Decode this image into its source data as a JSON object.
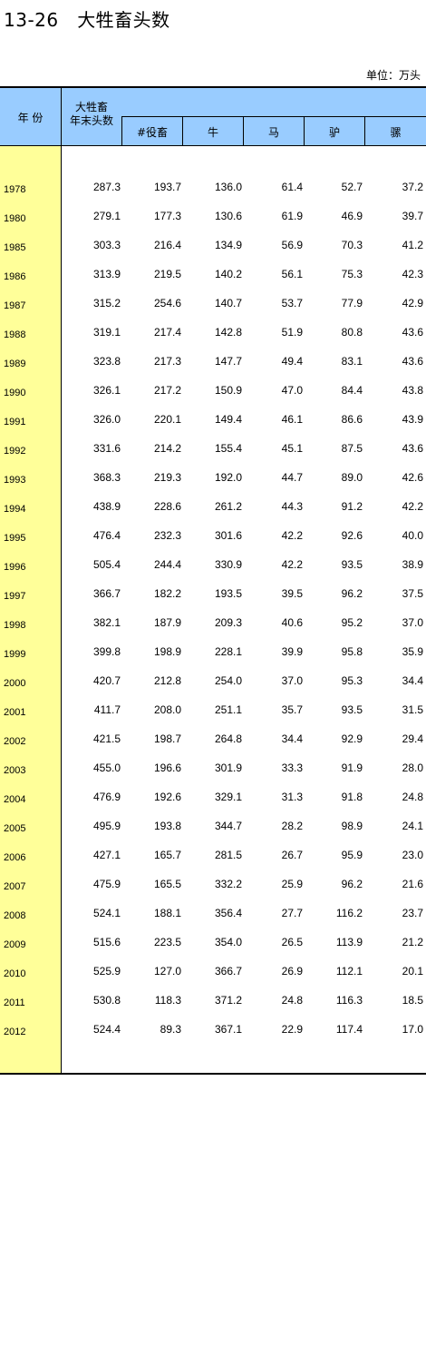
{
  "title": "13-26   大牲畜头数",
  "unit": "单位：万头",
  "headers": {
    "year": "年  份",
    "total": "大牲畜\n年末头数",
    "draft": "#役畜",
    "cattle": "牛",
    "horse": "马",
    "donkey": "驴",
    "mule": "骡"
  },
  "rows": [
    {
      "year": "1978",
      "total": "287.3",
      "draft": "193.7",
      "cattle": "136.0",
      "horse": "61.4",
      "donkey": "52.7",
      "mule": "37.2"
    },
    {
      "year": "1980",
      "total": "279.1",
      "draft": "177.3",
      "cattle": "130.6",
      "horse": "61.9",
      "donkey": "46.9",
      "mule": "39.7"
    },
    {
      "year": "1985",
      "total": "303.3",
      "draft": "216.4",
      "cattle": "134.9",
      "horse": "56.9",
      "donkey": "70.3",
      "mule": "41.2"
    },
    {
      "year": "1986",
      "total": "313.9",
      "draft": "219.5",
      "cattle": "140.2",
      "horse": "56.1",
      "donkey": "75.3",
      "mule": "42.3"
    },
    {
      "year": "1987",
      "total": "315.2",
      "draft": "254.6",
      "cattle": "140.7",
      "horse": "53.7",
      "donkey": "77.9",
      "mule": "42.9"
    },
    {
      "year": "1988",
      "total": "319.1",
      "draft": "217.4",
      "cattle": "142.8",
      "horse": "51.9",
      "donkey": "80.8",
      "mule": "43.6"
    },
    {
      "year": "1989",
      "total": "323.8",
      "draft": "217.3",
      "cattle": "147.7",
      "horse": "49.4",
      "donkey": "83.1",
      "mule": "43.6"
    },
    {
      "year": "1990",
      "total": "326.1",
      "draft": "217.2",
      "cattle": "150.9",
      "horse": "47.0",
      "donkey": "84.4",
      "mule": "43.8"
    },
    {
      "year": "1991",
      "total": "326.0",
      "draft": "220.1",
      "cattle": "149.4",
      "horse": "46.1",
      "donkey": "86.6",
      "mule": "43.9"
    },
    {
      "year": "1992",
      "total": "331.6",
      "draft": "214.2",
      "cattle": "155.4",
      "horse": "45.1",
      "donkey": "87.5",
      "mule": "43.6"
    },
    {
      "year": "1993",
      "total": "368.3",
      "draft": "219.3",
      "cattle": "192.0",
      "horse": "44.7",
      "donkey": "89.0",
      "mule": "42.6"
    },
    {
      "year": "1994",
      "total": "438.9",
      "draft": "228.6",
      "cattle": "261.2",
      "horse": "44.3",
      "donkey": "91.2",
      "mule": "42.2"
    },
    {
      "year": "1995",
      "total": "476.4",
      "draft": "232.3",
      "cattle": "301.6",
      "horse": "42.2",
      "donkey": "92.6",
      "mule": "40.0"
    },
    {
      "year": "1996",
      "total": "505.4",
      "draft": "244.4",
      "cattle": "330.9",
      "horse": "42.2",
      "donkey": "93.5",
      "mule": "38.9"
    },
    {
      "year": "1997",
      "total": "366.7",
      "draft": "182.2",
      "cattle": "193.5",
      "horse": "39.5",
      "donkey": "96.2",
      "mule": "37.5"
    },
    {
      "year": "1998",
      "total": "382.1",
      "draft": "187.9",
      "cattle": "209.3",
      "horse": "40.6",
      "donkey": "95.2",
      "mule": "37.0"
    },
    {
      "year": "1999",
      "total": "399.8",
      "draft": "198.9",
      "cattle": "228.1",
      "horse": "39.9",
      "donkey": "95.8",
      "mule": "35.9"
    },
    {
      "year": "2000",
      "total": "420.7",
      "draft": "212.8",
      "cattle": "254.0",
      "horse": "37.0",
      "donkey": "95.3",
      "mule": "34.4"
    },
    {
      "year": "2001",
      "total": "411.7",
      "draft": "208.0",
      "cattle": "251.1",
      "horse": "35.7",
      "donkey": "93.5",
      "mule": "31.5"
    },
    {
      "year": "2002",
      "total": "421.5",
      "draft": "198.7",
      "cattle": "264.8",
      "horse": "34.4",
      "donkey": "92.9",
      "mule": "29.4"
    },
    {
      "year": "2003",
      "total": "455.0",
      "draft": "196.6",
      "cattle": "301.9",
      "horse": "33.3",
      "donkey": "91.9",
      "mule": "28.0"
    },
    {
      "year": "2004",
      "total": "476.9",
      "draft": "192.6",
      "cattle": "329.1",
      "horse": "31.3",
      "donkey": "91.8",
      "mule": "24.8"
    },
    {
      "year": "2005",
      "total": "495.9",
      "draft": "193.8",
      "cattle": "344.7",
      "horse": "28.2",
      "donkey": "98.9",
      "mule": "24.1"
    },
    {
      "year": "2006",
      "total": "427.1",
      "draft": "165.7",
      "cattle": "281.5",
      "horse": "26.7",
      "donkey": "95.9",
      "mule": "23.0"
    },
    {
      "year": "2007",
      "total": "475.9",
      "draft": "165.5",
      "cattle": "332.2",
      "horse": "25.9",
      "donkey": "96.2",
      "mule": "21.6"
    },
    {
      "year": "2008",
      "total": "524.1",
      "draft": "188.1",
      "cattle": "356.4",
      "horse": "27.7",
      "donkey": "116.2",
      "mule": "23.7"
    },
    {
      "year": "2009",
      "total": "515.6",
      "draft": "223.5",
      "cattle": "354.0",
      "horse": "26.5",
      "donkey": "113.9",
      "mule": "21.2"
    },
    {
      "year": "2010",
      "total": "525.9",
      "draft": "127.0",
      "cattle": "366.7",
      "horse": "26.9",
      "donkey": "112.1",
      "mule": "20.1"
    },
    {
      "year": "2011",
      "total": "530.8",
      "draft": "118.3",
      "cattle": "371.2",
      "horse": "24.8",
      "donkey": "116.3",
      "mule": "18.5"
    },
    {
      "year": "2012",
      "total": "524.4",
      "draft": "89.3",
      "cattle": "367.1",
      "horse": "22.9",
      "donkey": "117.4",
      "mule": "17.0"
    }
  ]
}
